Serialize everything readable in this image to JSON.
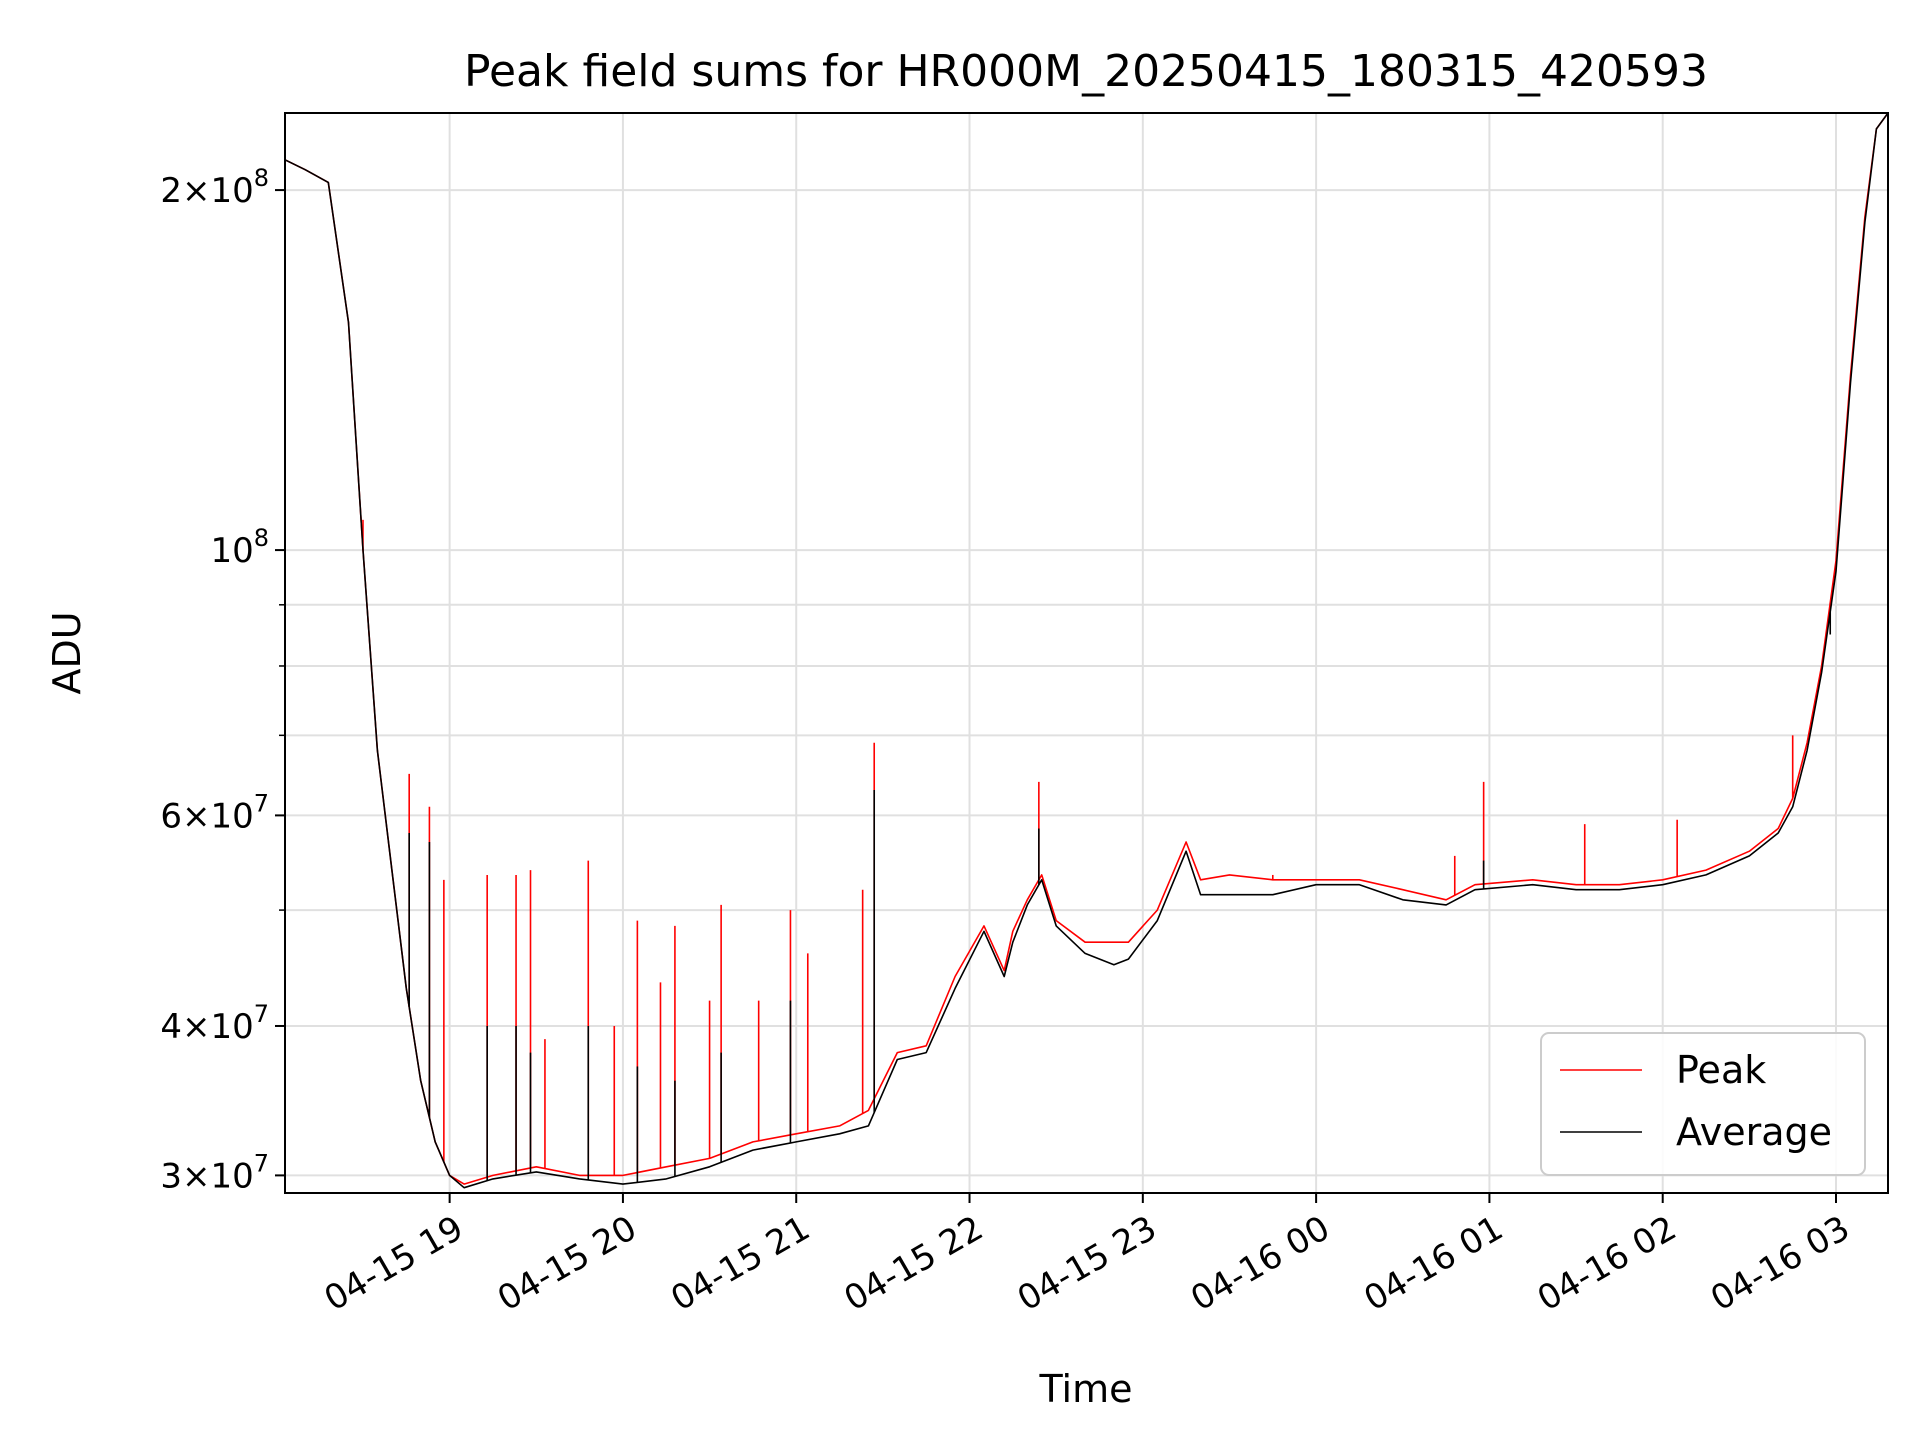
{
  "chart_data": {
    "type": "line",
    "title": "Peak field sums for HR000M_20250415_180315_420593",
    "xlabel": "Time",
    "ylabel": "ADU",
    "yscale": "log",
    "ylim": [
      29000000,
      232000000
    ],
    "xlim": [
      "2025-04-15 18:03",
      "2025-04-16 03:18"
    ],
    "grid": true,
    "legend_position": "lower-right",
    "x_tick_labels": [
      "04-15 19",
      "04-15 20",
      "04-15 21",
      "04-15 22",
      "04-15 23",
      "04-16 00",
      "04-16 01",
      "04-16 02",
      "04-16 03"
    ],
    "x_ticks": [
      "2025-04-15 19:00",
      "2025-04-15 20:00",
      "2025-04-15 21:00",
      "2025-04-15 22:00",
      "2025-04-15 23:00",
      "2025-04-16 00:00",
      "2025-04-16 01:00",
      "2025-04-16 02:00",
      "2025-04-16 03:00"
    ],
    "y_ticks": [
      {
        "value": 30000000,
        "mantissa": "3",
        "exp": "7"
      },
      {
        "value": 40000000,
        "mantissa": "4",
        "exp": "7"
      },
      {
        "value": 60000000,
        "mantissa": "6",
        "exp": "7"
      },
      {
        "value": 100000000,
        "mantissa": "",
        "exp": "8"
      },
      {
        "value": 200000000,
        "mantissa": "2",
        "exp": "8"
      }
    ],
    "y_minor_ticks": [
      50000000,
      70000000,
      80000000,
      90000000
    ],
    "x": [
      "2025-04-15 18:03",
      "2025-04-15 18:10",
      "2025-04-15 18:18",
      "2025-04-15 18:25",
      "2025-04-15 18:30",
      "2025-04-15 18:35",
      "2025-04-15 18:40",
      "2025-04-15 18:45",
      "2025-04-15 18:50",
      "2025-04-15 18:55",
      "2025-04-15 19:00",
      "2025-04-15 19:05",
      "2025-04-15 19:15",
      "2025-04-15 19:30",
      "2025-04-15 19:45",
      "2025-04-15 20:00",
      "2025-04-15 20:15",
      "2025-04-15 20:30",
      "2025-04-15 20:45",
      "2025-04-15 21:00",
      "2025-04-15 21:15",
      "2025-04-15 21:25",
      "2025-04-15 21:35",
      "2025-04-15 21:45",
      "2025-04-15 21:55",
      "2025-04-15 22:05",
      "2025-04-15 22:12",
      "2025-04-15 22:15",
      "2025-04-15 22:20",
      "2025-04-15 22:25",
      "2025-04-15 22:30",
      "2025-04-15 22:40",
      "2025-04-15 22:50",
      "2025-04-15 22:55",
      "2025-04-15 23:05",
      "2025-04-15 23:15",
      "2025-04-15 23:20",
      "2025-04-15 23:30",
      "2025-04-15 23:45",
      "2025-04-16 00:00",
      "2025-04-16 00:15",
      "2025-04-16 00:30",
      "2025-04-16 00:45",
      "2025-04-16 00:55",
      "2025-04-16 01:15",
      "2025-04-16 01:30",
      "2025-04-16 01:45",
      "2025-04-16 02:00",
      "2025-04-16 02:15",
      "2025-04-16 02:30",
      "2025-04-16 02:40",
      "2025-04-16 02:45",
      "2025-04-16 02:50",
      "2025-04-16 02:55",
      "2025-04-16 03:00",
      "2025-04-16 03:05",
      "2025-04-16 03:10",
      "2025-04-16 03:14",
      "2025-04-16 03:18"
    ],
    "series": [
      {
        "name": "Peak",
        "color": "#ff0000",
        "values": [
          212000000,
          208000000,
          203000000,
          155000000,
          100000000,
          68000000,
          54000000,
          43000000,
          36000000,
          32000000,
          30000000,
          29500000,
          30000000,
          30500000,
          30000000,
          30000000,
          30500000,
          31000000,
          32000000,
          32500000,
          33000000,
          34000000,
          38000000,
          38500000,
          44000000,
          48500000,
          44500000,
          48000000,
          51000000,
          53500000,
          49000000,
          47000000,
          47000000,
          47000000,
          50000000,
          57000000,
          53000000,
          53500000,
          53000000,
          53000000,
          53000000,
          52000000,
          51000000,
          52500000,
          53000000,
          52500000,
          52500000,
          53000000,
          54000000,
          56000000,
          58500000,
          62000000,
          69000000,
          80000000,
          98000000,
          140000000,
          190000000,
          225000000,
          232000000
        ],
        "spikes": [
          {
            "x": "2025-04-15 18:30",
            "y": 106000000
          },
          {
            "x": "2025-04-15 18:46",
            "y": 65000000
          },
          {
            "x": "2025-04-15 18:53",
            "y": 61000000
          },
          {
            "x": "2025-04-15 18:58",
            "y": 53000000
          },
          {
            "x": "2025-04-15 19:13",
            "y": 53500000
          },
          {
            "x": "2025-04-15 19:23",
            "y": 53500000
          },
          {
            "x": "2025-04-15 19:28",
            "y": 54000000
          },
          {
            "x": "2025-04-15 19:33",
            "y": 39000000
          },
          {
            "x": "2025-04-15 19:48",
            "y": 55000000
          },
          {
            "x": "2025-04-15 19:57",
            "y": 40000000
          },
          {
            "x": "2025-04-15 20:05",
            "y": 49000000
          },
          {
            "x": "2025-04-15 20:13",
            "y": 43500000
          },
          {
            "x": "2025-04-15 20:18",
            "y": 48500000
          },
          {
            "x": "2025-04-15 20:30",
            "y": 42000000
          },
          {
            "x": "2025-04-15 20:34",
            "y": 50500000
          },
          {
            "x": "2025-04-15 20:47",
            "y": 42000000
          },
          {
            "x": "2025-04-15 20:58",
            "y": 50000000
          },
          {
            "x": "2025-04-15 21:04",
            "y": 46000000
          },
          {
            "x": "2025-04-15 21:23",
            "y": 52000000
          },
          {
            "x": "2025-04-15 21:27",
            "y": 69000000
          },
          {
            "x": "2025-04-15 22:24",
            "y": 64000000
          },
          {
            "x": "2025-04-15 23:45",
            "y": 53500000
          },
          {
            "x": "2025-04-16 00:48",
            "y": 55500000
          },
          {
            "x": "2025-04-16 00:58",
            "y": 64000000
          },
          {
            "x": "2025-04-16 01:33",
            "y": 59000000
          },
          {
            "x": "2025-04-16 02:05",
            "y": 59500000
          },
          {
            "x": "2025-04-16 02:45",
            "y": 70000000
          },
          {
            "x": "2025-04-16 02:58",
            "y": 90000000
          }
        ]
      },
      {
        "name": "Average",
        "color": "#000000",
        "values": [
          212000000,
          208000000,
          203000000,
          155000000,
          100000000,
          68000000,
          54000000,
          43000000,
          36000000,
          32000000,
          30000000,
          29300000,
          29800000,
          30200000,
          29800000,
          29500000,
          29800000,
          30500000,
          31500000,
          32000000,
          32500000,
          33000000,
          37500000,
          38000000,
          43000000,
          48000000,
          44000000,
          47000000,
          50500000,
          53000000,
          48500000,
          46000000,
          45000000,
          45500000,
          49000000,
          56000000,
          51500000,
          51500000,
          51500000,
          52500000,
          52500000,
          51000000,
          50500000,
          52000000,
          52500000,
          52000000,
          52000000,
          52500000,
          53500000,
          55500000,
          58000000,
          61000000,
          68000000,
          79000000,
          96000000,
          138000000,
          188000000,
          225000000,
          232000000
        ],
        "spikes": [
          {
            "x": "2025-04-15 18:46",
            "y": 58000000
          },
          {
            "x": "2025-04-15 18:53",
            "y": 57000000
          },
          {
            "x": "2025-04-15 19:13",
            "y": 40000000
          },
          {
            "x": "2025-04-15 19:23",
            "y": 40000000
          },
          {
            "x": "2025-04-15 19:28",
            "y": 38000000
          },
          {
            "x": "2025-04-15 19:48",
            "y": 40000000
          },
          {
            "x": "2025-04-15 20:05",
            "y": 37000000
          },
          {
            "x": "2025-04-15 20:18",
            "y": 36000000
          },
          {
            "x": "2025-04-15 20:34",
            "y": 38000000
          },
          {
            "x": "2025-04-15 20:58",
            "y": 42000000
          },
          {
            "x": "2025-04-15 21:27",
            "y": 63000000
          },
          {
            "x": "2025-04-15 22:24",
            "y": 58500000
          },
          {
            "x": "2025-04-16 00:58",
            "y": 55000000
          },
          {
            "x": "2025-04-16 02:58",
            "y": 85000000
          }
        ]
      }
    ]
  }
}
